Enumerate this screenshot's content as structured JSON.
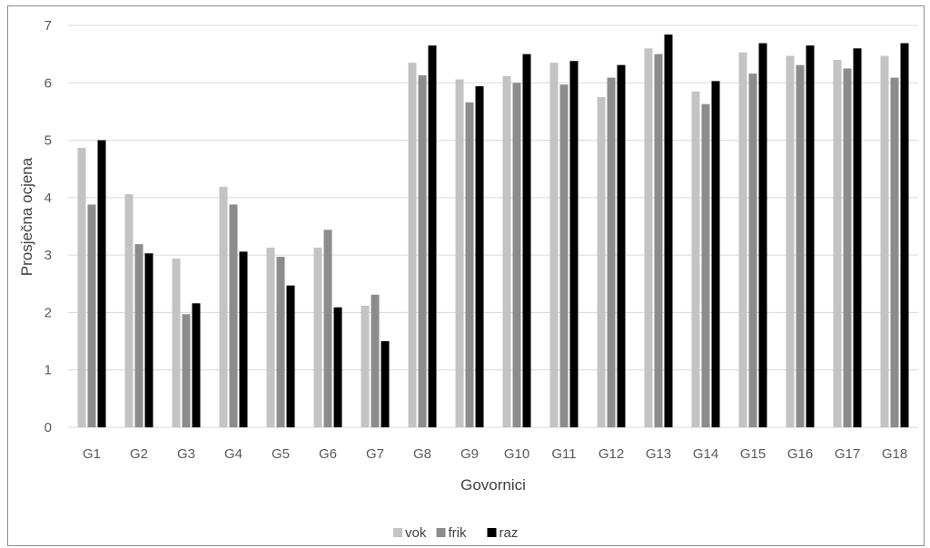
{
  "chart_data": {
    "type": "bar",
    "title": "",
    "xlabel": "Govornici",
    "ylabel": "Prosječna ocjena",
    "ylim": [
      0,
      7
    ],
    "yticks": [
      0,
      1,
      2,
      3,
      4,
      5,
      6,
      7
    ],
    "grid": true,
    "legend_position": "bottom",
    "categories": [
      "G1",
      "G2",
      "G3",
      "G4",
      "G5",
      "G6",
      "G7",
      "G8",
      "G9",
      "G10",
      "G11",
      "G12",
      "G13",
      "G14",
      "G15",
      "G16",
      "G17",
      "G18"
    ],
    "series": [
      {
        "name": "vok",
        "color": "#c3c3c3",
        "values": [
          4.87,
          4.06,
          2.94,
          4.19,
          3.13,
          3.13,
          2.12,
          6.35,
          6.06,
          6.12,
          6.35,
          5.75,
          6.6,
          5.85,
          6.53,
          6.47,
          6.4,
          6.47
        ]
      },
      {
        "name": "frik",
        "color": "#8c8c8c",
        "values": [
          3.88,
          3.19,
          1.97,
          3.88,
          2.97,
          3.44,
          2.31,
          6.13,
          5.66,
          6.0,
          5.97,
          6.09,
          6.5,
          5.63,
          6.16,
          6.31,
          6.25,
          6.09
        ]
      },
      {
        "name": "raz",
        "color": "#000000",
        "values": [
          5.0,
          3.03,
          2.16,
          3.06,
          2.47,
          2.09,
          1.5,
          6.65,
          5.94,
          6.5,
          6.38,
          6.31,
          6.84,
          6.03,
          6.69,
          6.65,
          6.6,
          6.69
        ]
      }
    ]
  }
}
